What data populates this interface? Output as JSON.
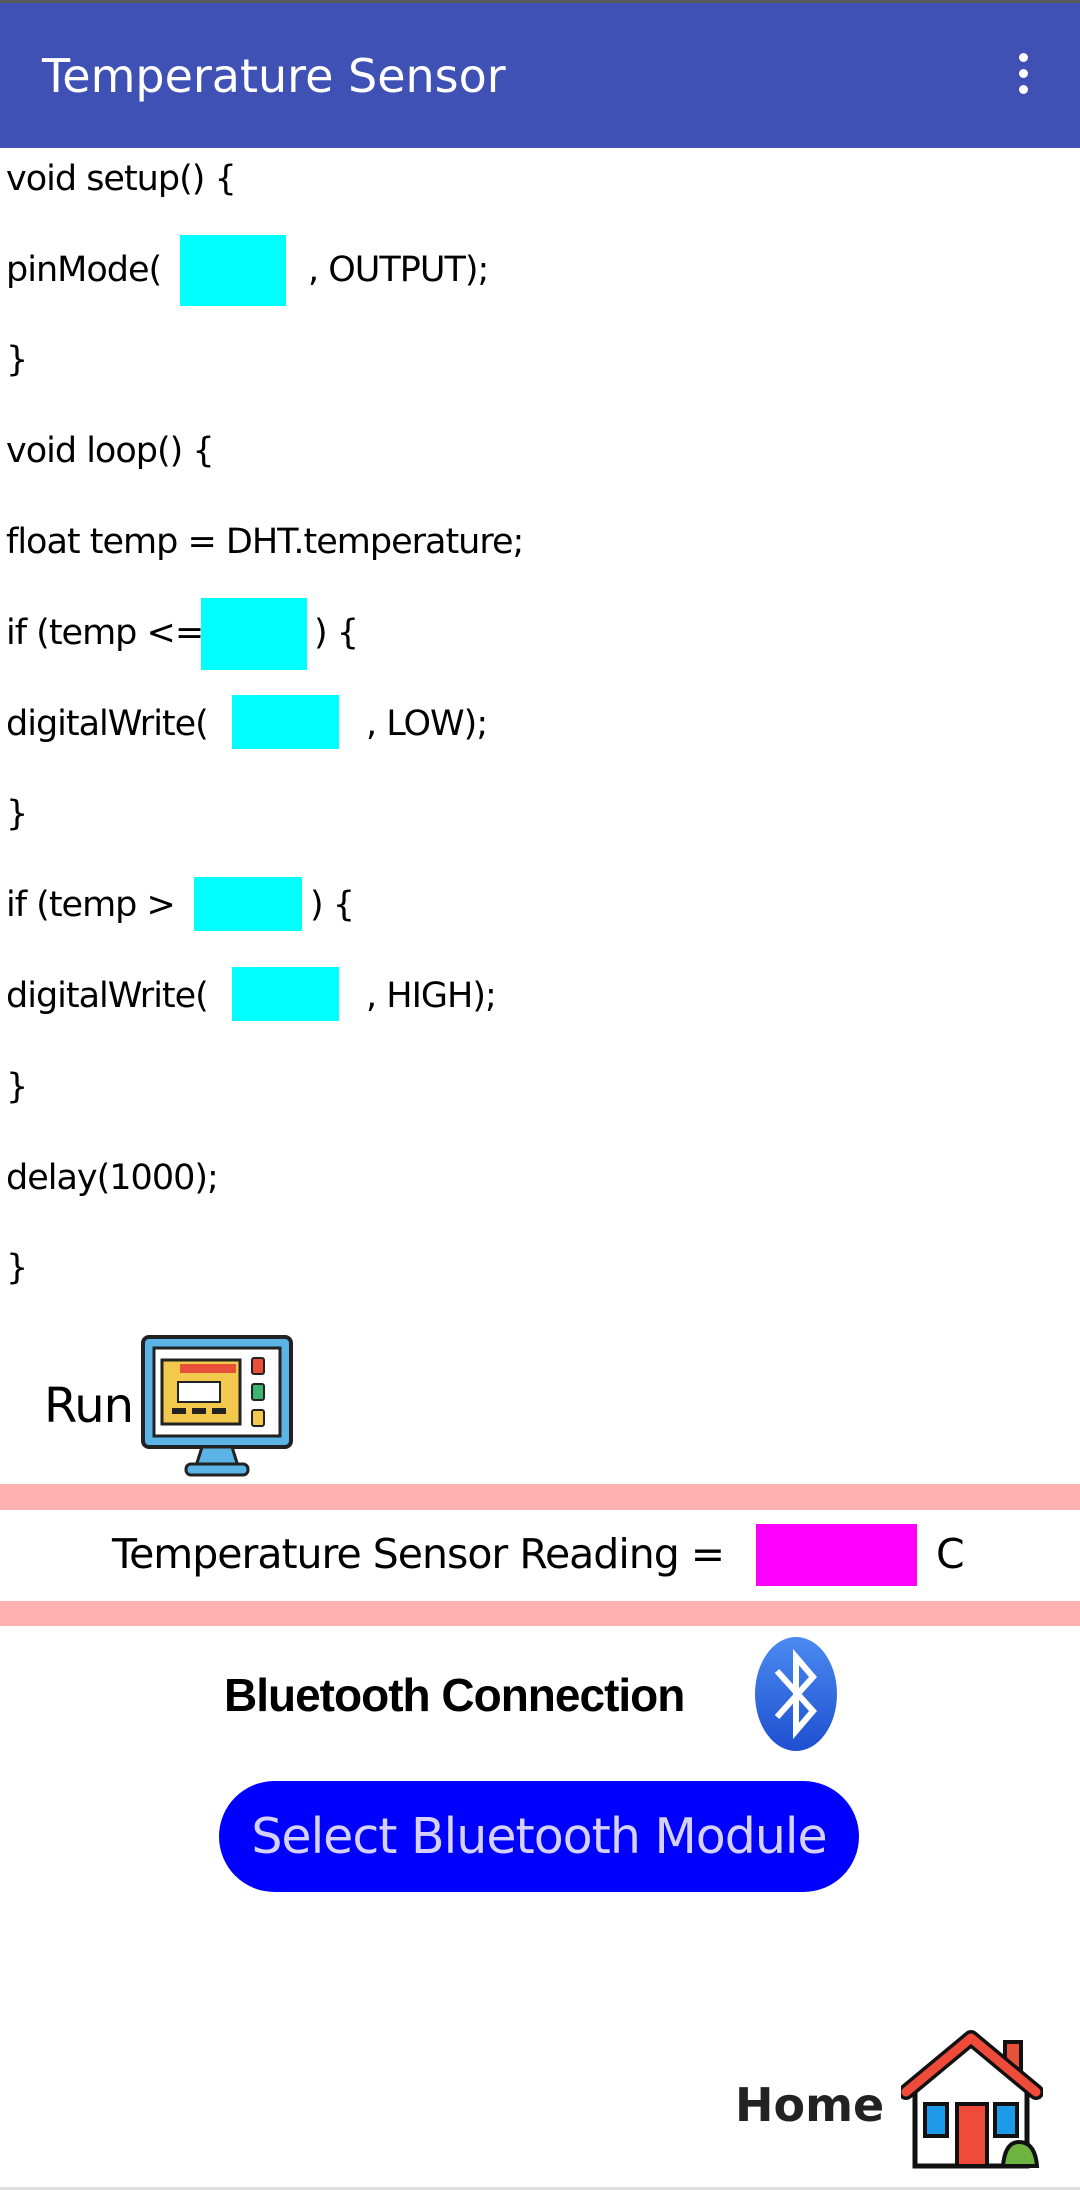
{
  "app_bar": {
    "title": "Temperature Sensor",
    "menu_icon": "more-vert-icon",
    "color": "#3F51B5"
  },
  "code": {
    "lines": [
      {
        "before": "void setup() {",
        "after": ""
      },
      {
        "before": "pinMode(",
        "after": ", OUTPUT);"
      },
      {
        "before": "}",
        "after": ""
      },
      {
        "before": "void loop() {",
        "after": ""
      },
      {
        "before": "float temp = DHT.temperature;",
        "after": ""
      },
      {
        "before": "if (temp <=",
        "after": ") {"
      },
      {
        "before": "digitalWrite(",
        "after": ", LOW);"
      },
      {
        "before": "}",
        "after": ""
      },
      {
        "before": "if (temp >",
        "after": ") {"
      },
      {
        "before": "digitalWrite(",
        "after": ", HIGH);"
      },
      {
        "before": "}",
        "after": ""
      },
      {
        "before": "delay(1000);",
        "after": ""
      },
      {
        "before": "}",
        "after": ""
      }
    ],
    "slot_color": "#00FFFF"
  },
  "run": {
    "label": "Run",
    "icon": "computer-dashboard-icon"
  },
  "reading": {
    "label": "Temperature Sensor Reading =",
    "unit": "C",
    "value_color": "#FF00FF",
    "band_color": "#FFB0B0"
  },
  "bluetooth": {
    "label": "Bluetooth Connection",
    "icon": "bluetooth-icon",
    "button_label": "Select Bluetooth Module",
    "button_color": "#0000FF"
  },
  "home": {
    "label": "Home",
    "icon": "house-icon"
  }
}
